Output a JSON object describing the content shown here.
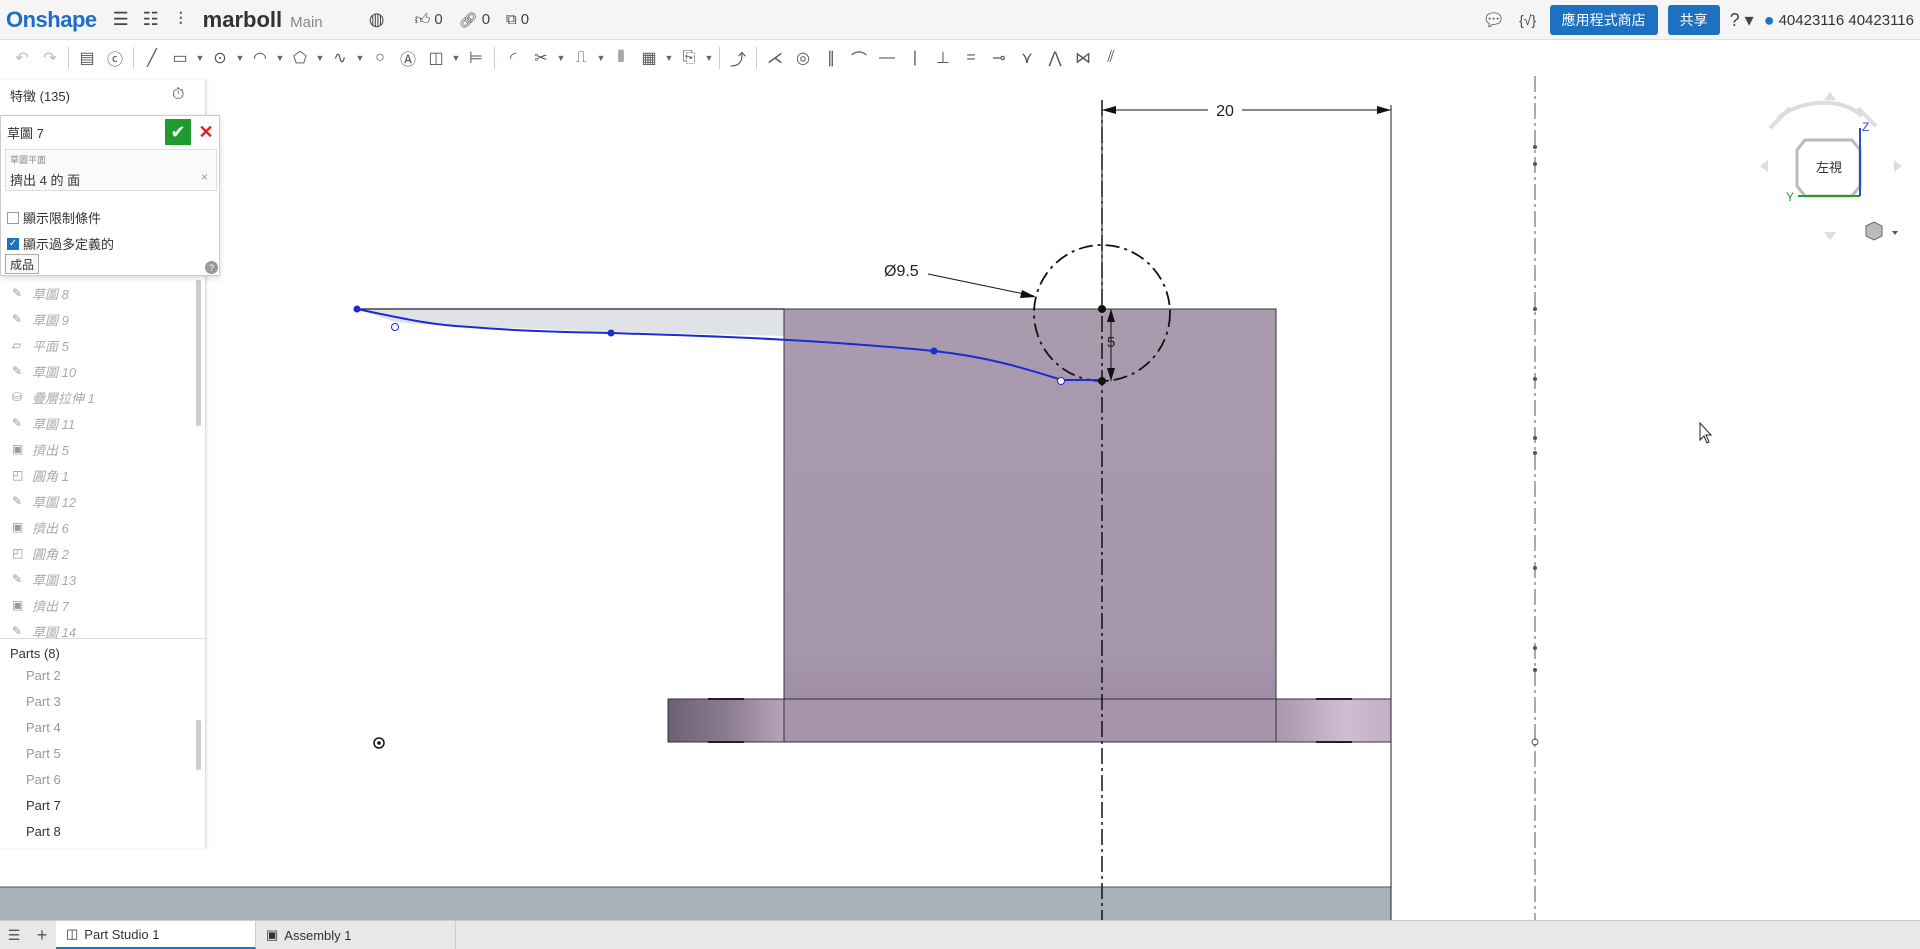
{
  "app": {
    "logo": "Onshape",
    "doc_title": "marboll",
    "branch": "Main",
    "likes": "0",
    "links": "0",
    "copies": "0",
    "app_store_label": "應用程式商店",
    "share_label": "共享",
    "help_icon": "help-icon",
    "user_name": "40423116 40423116",
    "comment_icon": "comment-icon",
    "variables_icon": "variables-icon"
  },
  "feature_panel": {
    "header": "特徵 (135)",
    "sketch_name": "草圖 7",
    "plane_label": "草圖平面",
    "plane_value": "擠出 4 的 面",
    "show_constraints": "顯示限制條件",
    "show_overdefined": "顯示過多定義的",
    "finish_label": "成品",
    "features": [
      {
        "icon": "sketch-icon",
        "label": "草圖 8"
      },
      {
        "icon": "sketch-icon",
        "label": "草圖 9"
      },
      {
        "icon": "plane-icon",
        "label": "平面 5"
      },
      {
        "icon": "sketch-icon",
        "label": "草圖 10"
      },
      {
        "icon": "loft-icon",
        "label": "疊層拉伸 1"
      },
      {
        "icon": "sketch-icon",
        "label": "草圖 11"
      },
      {
        "icon": "extrude-icon",
        "label": "擠出 5"
      },
      {
        "icon": "fillet-icon",
        "label": "圓角 1"
      },
      {
        "icon": "sketch-icon",
        "label": "草圖 12"
      },
      {
        "icon": "extrude-icon",
        "label": "擠出 6"
      },
      {
        "icon": "fillet-icon",
        "label": "圓角 2"
      },
      {
        "icon": "sketch-icon",
        "label": "草圖 13"
      },
      {
        "icon": "extrude-icon",
        "label": "擠出 7"
      },
      {
        "icon": "sketch-icon",
        "label": "草圖 14"
      }
    ],
    "parts_header": "Parts (8)",
    "parts": [
      "Part 2",
      "Part 3",
      "Part 4",
      "Part 5",
      "Part 6",
      "Part 7",
      "Part 8"
    ]
  },
  "viewport": {
    "dimension_width": "20",
    "dimension_diameter": "Ø9.5",
    "dimension_height": "5",
    "view_cube_label": "左視",
    "axis_z": "Z",
    "axis_y": "Y"
  },
  "tabs": [
    {
      "label": "Part Studio 1",
      "icon": "part-studio-icon",
      "active": true
    },
    {
      "label": "Assembly 1",
      "icon": "assembly-icon",
      "active": false
    }
  ],
  "colors": {
    "brand": "#1d6ec9",
    "confirm": "#1f9a2f",
    "cancel": "#dd2222",
    "part_fill": "#a89aae",
    "sketch_curve": "#1a2bd6"
  }
}
